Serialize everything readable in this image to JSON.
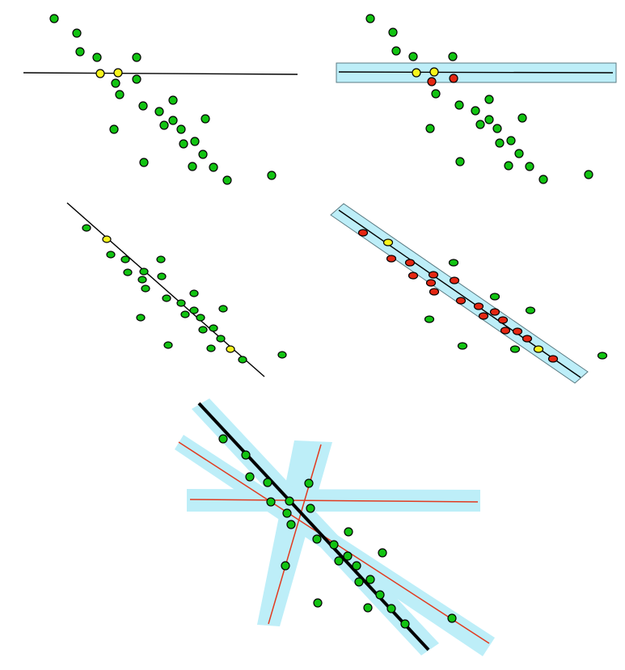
{
  "colors": {
    "inlier": "#12c312",
    "sample": "#f7f51c",
    "outlier": "#e42712",
    "band": "#bdeef8",
    "candidate_line": "#e23a1f",
    "model_line": "#000000"
  },
  "panels": [
    {
      "id": "sample-pair",
      "description_visible": false
    },
    {
      "id": "consensus-band-few",
      "description_visible": false
    },
    {
      "id": "sample-pair-diagonal",
      "description_visible": false
    },
    {
      "id": "consensus-band-many",
      "description_visible": false
    },
    {
      "id": "candidate-comparison",
      "description_visible": false
    }
  ]
}
